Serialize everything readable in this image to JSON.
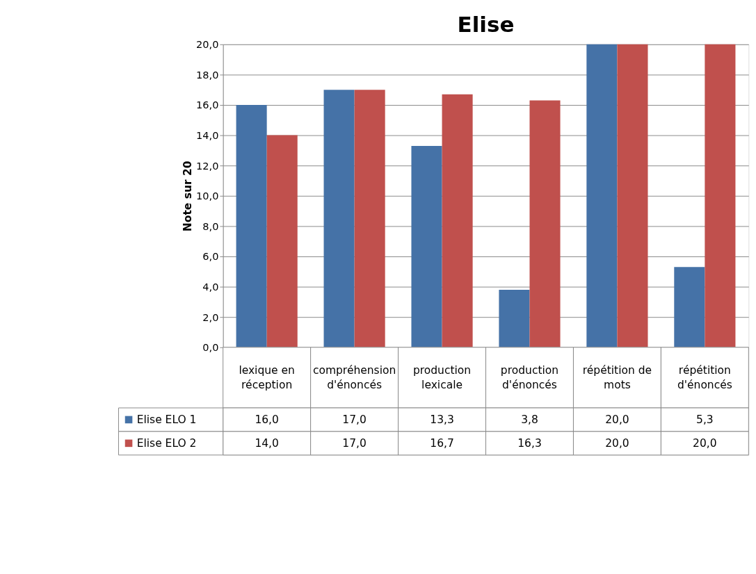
{
  "chart_data": {
    "type": "bar",
    "title": "Elise",
    "ylabel": "Note sur 20",
    "categories": [
      "lexique en réception",
      "compréhension d'énoncés",
      "production lexicale",
      "production d'énoncés",
      "répétition de mots",
      "répétition d'énoncés"
    ],
    "series": [
      {
        "name": "Elise ELO 1",
        "color": "#4572a7",
        "values": [
          16.0,
          17.0,
          13.3,
          3.8,
          20.0,
          5.3
        ],
        "value_labels": [
          "16,0",
          "17,0",
          "13,3",
          "3,8",
          "20,0",
          "5,3"
        ]
      },
      {
        "name": "Elise ELO 2",
        "color": "#c0504d",
        "values": [
          14.0,
          17.0,
          16.7,
          16.3,
          20.0,
          20.0
        ],
        "value_labels": [
          "14,0",
          "17,0",
          "16,7",
          "16,3",
          "20,0",
          "20,0"
        ]
      }
    ],
    "ylim": [
      0,
      20
    ],
    "yticks": [
      {
        "value": 0,
        "label": "0,0"
      },
      {
        "value": 2,
        "label": "2,0"
      },
      {
        "value": 4,
        "label": "4,0"
      },
      {
        "value": 6,
        "label": "6,0"
      },
      {
        "value": 8,
        "label": "8,0"
      },
      {
        "value": 10,
        "label": "10,0"
      },
      {
        "value": 12,
        "label": "12,0"
      },
      {
        "value": 14,
        "label": "14,0"
      },
      {
        "value": 16,
        "label": "16,0"
      },
      {
        "value": 18,
        "label": "18,0"
      },
      {
        "value": 20,
        "label": "20,0"
      }
    ],
    "grid": "y",
    "legend": "bottom"
  }
}
